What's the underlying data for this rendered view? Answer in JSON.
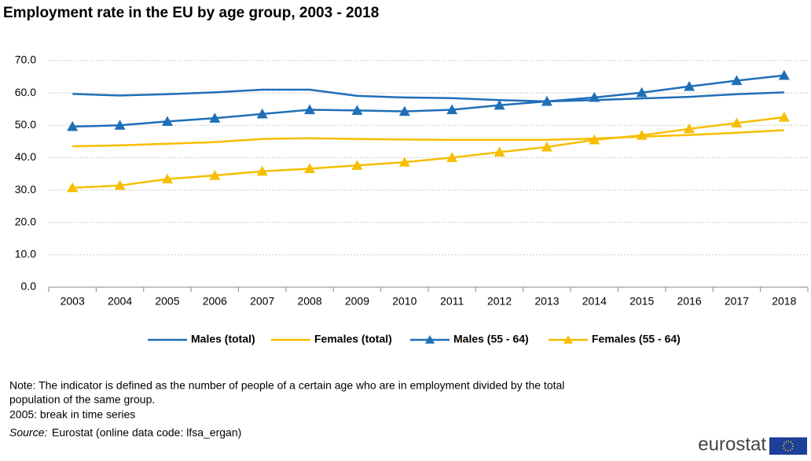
{
  "chart_data": {
    "type": "line",
    "title": "Employment rate in the EU by age group, 2003 - 2018",
    "categories": [
      "2003",
      "2004",
      "2005",
      "2006",
      "2007",
      "2008",
      "2009",
      "2010",
      "2011",
      "2012",
      "2013",
      "2014",
      "2015",
      "2016",
      "2017",
      "2018"
    ],
    "series": [
      {
        "name": "Males (total)",
        "color": "#1f6fb7",
        "values": [
          59.7,
          59.2,
          59.6,
          60.2,
          61.0,
          61.0,
          59.1,
          58.6,
          58.4,
          57.8,
          57.4,
          57.8,
          58.3,
          58.8,
          59.6,
          60.2
        ]
      },
      {
        "name": "Females (total)",
        "color": "#f7be00",
        "values": [
          43.5,
          43.8,
          44.3,
          44.8,
          45.8,
          46.0,
          45.8,
          45.6,
          45.5,
          45.5,
          45.5,
          45.9,
          46.5,
          47.0,
          47.7,
          48.5
        ]
      },
      {
        "name": "Males (55 - 64)",
        "color": "#1f6fb7",
        "marker": "triangle",
        "values": [
          49.6,
          50.0,
          51.2,
          52.2,
          53.5,
          54.8,
          54.6,
          54.3,
          54.8,
          56.2,
          57.4,
          58.6,
          60.1,
          62.0,
          63.8,
          65.4
        ]
      },
      {
        "name": "Females (55 - 64)",
        "color": "#f7be00",
        "marker": "triangle",
        "values": [
          30.7,
          31.4,
          33.4,
          34.5,
          35.8,
          36.6,
          37.6,
          38.6,
          40.0,
          41.7,
          43.3,
          45.5,
          46.9,
          48.9,
          50.7,
          52.5
        ]
      }
    ],
    "ylim": [
      0,
      70
    ],
    "yticks": [
      {
        "value": 0,
        "label": "0.0"
      },
      {
        "value": 10,
        "label": "10.0"
      },
      {
        "value": 20,
        "label": "20.0"
      },
      {
        "value": 30,
        "label": "30.0"
      },
      {
        "value": 40,
        "label": "40.0"
      },
      {
        "value": 50,
        "label": "50.0"
      },
      {
        "value": 60,
        "label": "60.0"
      },
      {
        "value": 70,
        "label": "70.0"
      }
    ],
    "grid": true,
    "legend": "bottom"
  },
  "notes": {
    "lines": [
      "Note: The indicator is defined as the number of people of a certain age who are in employment divided by the total",
      "population of the same group.",
      "2005: break in time series"
    ],
    "source_label": "Source:",
    "source_text": "Eurostat (online data code: lfsa_ergan)"
  },
  "logo": "eurostat"
}
